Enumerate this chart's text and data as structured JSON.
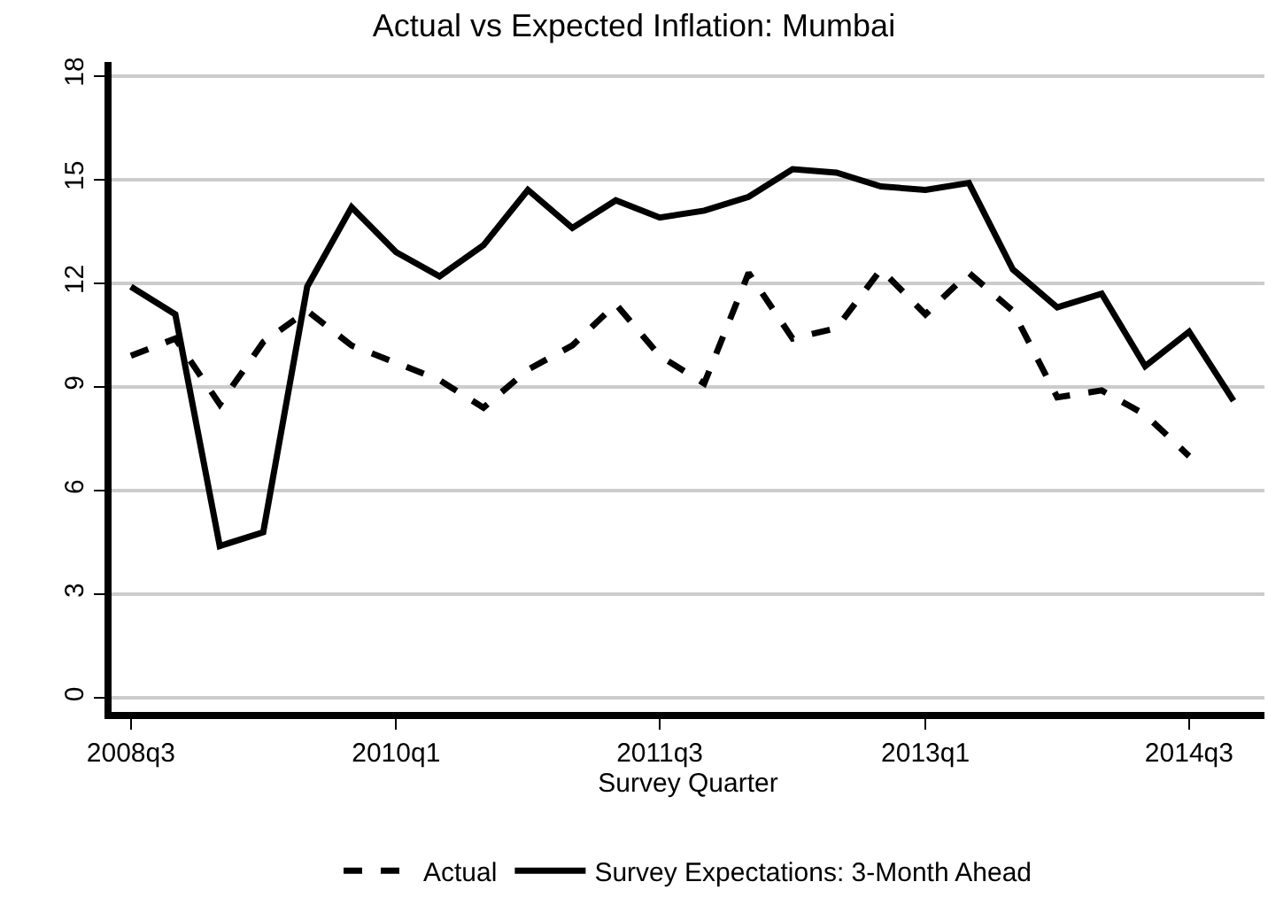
{
  "chart_data": {
    "type": "line",
    "title": "Actual vs Expected Inflation: Mumbai",
    "xlabel": "Survey Quarter",
    "x": [
      "2008-07-01",
      "2008-10-01",
      "2009-01-01",
      "2009-04-01",
      "2009-07-01",
      "2009-10-01",
      "2010-01-01",
      "2010-04-01",
      "2010-07-01",
      "2010-10-01",
      "2011-01-01",
      "2011-04-01",
      "2011-07-01",
      "2011-10-01",
      "2012-01-01",
      "2012-04-01",
      "2012-07-01",
      "2012-10-01",
      "2013-01-01",
      "2013-04-01",
      "2013-07-01",
      "2013-10-01",
      "2014-01-01",
      "2014-04-01",
      "2014-07-01",
      "2014-10-01"
    ],
    "series": [
      {
        "name": "Actual",
        "color": "#000000",
        "line_style": "dashed",
        "values": [
          9.9,
          10.4,
          8.5,
          10.3,
          11.2,
          10.2,
          9.7,
          9.2,
          8.4,
          9.5,
          10.2,
          11.4,
          9.9,
          9.1,
          12.3,
          10.4,
          10.7,
          12.4,
          11.1,
          12.3,
          11.2,
          8.7,
          8.9,
          8.2,
          7.0,
          null
        ]
      },
      {
        "name": "Survey Expectations: 3-Month Ahead",
        "color": "#000000",
        "line_style": "solid",
        "values": [
          11.9,
          11.1,
          4.4,
          4.8,
          11.9,
          14.2,
          12.9,
          12.2,
          13.1,
          14.7,
          13.6,
          14.4,
          13.9,
          14.1,
          14.5,
          15.3,
          15.2,
          14.8,
          14.7,
          14.9,
          12.4,
          11.3,
          11.7,
          9.6,
          10.6,
          8.6
        ]
      }
    ],
    "xlim": [
      "2008-05-22",
      "2014-12-04"
    ],
    "xticks": [
      {
        "value": "2008-07-01",
        "label": "2008q3"
      },
      {
        "value": "2010-01-01",
        "label": "2010q1"
      },
      {
        "value": "2011-07-01",
        "label": "2011q3"
      },
      {
        "value": "2013-01-01",
        "label": "2013q1"
      },
      {
        "value": "2014-07-01",
        "label": "2014q3"
      }
    ],
    "ylim": [
      -0.4,
      18.4
    ],
    "yticks": [
      0,
      3,
      6,
      9,
      12,
      15,
      18
    ],
    "grid": "y",
    "legend": "bottom",
    "marker": "none"
  }
}
